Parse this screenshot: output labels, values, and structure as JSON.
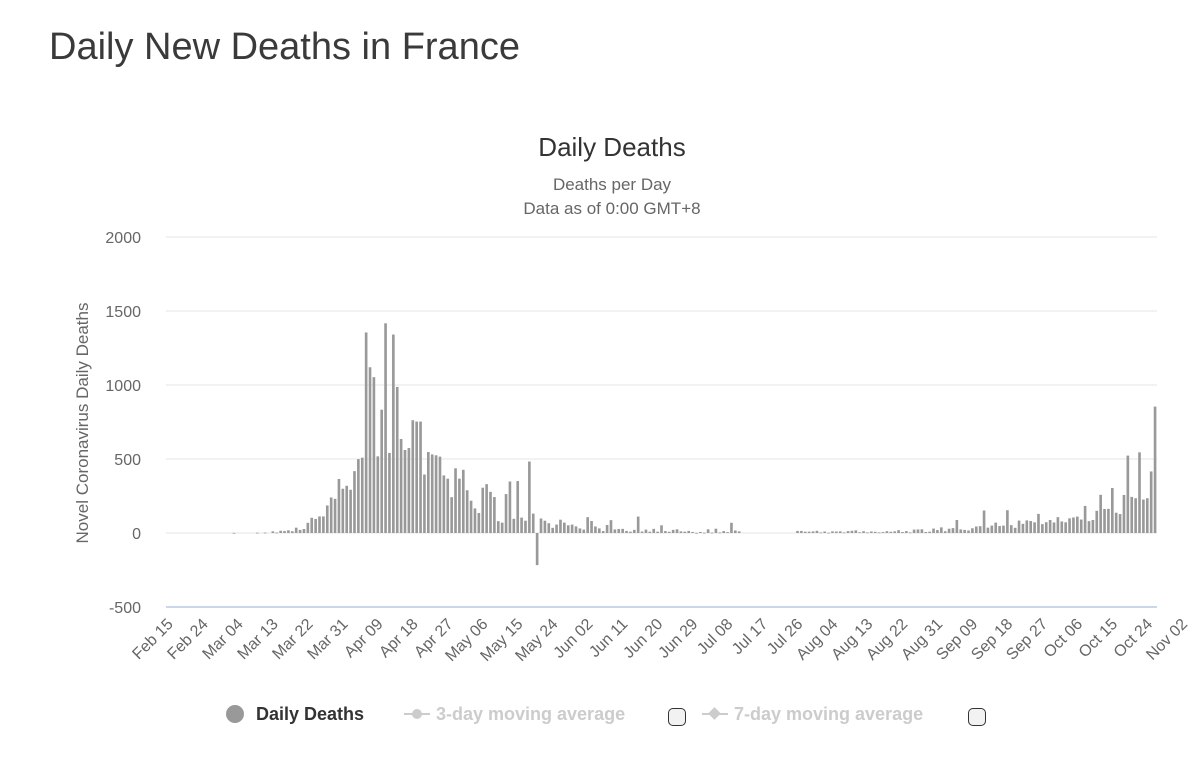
{
  "page": {
    "title": "Daily New Deaths in France"
  },
  "legend": {
    "items": [
      {
        "label": "Daily Deaths",
        "active": true
      },
      {
        "label": "3-day moving average",
        "active": false
      },
      {
        "label": "7-day moving average",
        "active": false
      }
    ]
  },
  "colors": {
    "bar": "#999999",
    "grid": "#e6e6e6",
    "zero_axis": "#ccd6eb",
    "text": "#666666"
  },
  "chart_data": {
    "type": "bar",
    "title": "Daily Deaths",
    "subtitle": [
      "Deaths per Day",
      "Data as of 0:00 GMT+8"
    ],
    "ylabel": "Novel Coronavirus Daily Deaths",
    "xlabel": "",
    "ylim": [
      -500,
      2000
    ],
    "yticks": [
      -500,
      0,
      500,
      1000,
      1500,
      2000
    ],
    "grid": true,
    "legend_position": "bottom",
    "x_start": "Feb 15",
    "x_tick_labels": [
      "Feb 15",
      "Feb 24",
      "Mar 04",
      "Mar 13",
      "Mar 22",
      "Mar 31",
      "Apr 09",
      "Apr 18",
      "Apr 27",
      "May 06",
      "May 15",
      "May 24",
      "Jun 02",
      "Jun 11",
      "Jun 20",
      "Jun 29",
      "Jul 08",
      "Jul 17",
      "Jul 26",
      "Aug 04",
      "Aug 13",
      "Aug 22",
      "Aug 31",
      "Sep 09",
      "Sep 18",
      "Sep 27",
      "Oct 06",
      "Oct 15",
      "Oct 24",
      "Nov 02"
    ],
    "series": [
      {
        "name": "Daily Deaths",
        "values": [
          0,
          0,
          0,
          0,
          0,
          0,
          0,
          0,
          0,
          0,
          0,
          0,
          0,
          0,
          0,
          0,
          0,
          1,
          0,
          0,
          0,
          0,
          0,
          2,
          0,
          3,
          0,
          11,
          3,
          15,
          13,
          18,
          12,
          36,
          21,
          27,
          69,
          103,
          95,
          112,
          112,
          186,
          240,
          231,
          365,
          299,
          319,
          292,
          418,
          499,
          509,
          1355,
          1120,
          1053,
          518,
          833,
          1417,
          541,
          1341,
          987,
          635,
          561,
          574,
          762,
          753,
          753,
          395,
          547,
          531,
          525,
          516,
          389,
          367,
          242,
          437,
          367,
          427,
          289,
          218,
          166,
          135,
          306,
          330,
          278,
          243,
          80,
          70,
          263,
          348,
          96,
          351,
          104,
          83,
          483,
          131,
          -217,
          98,
          83,
          66,
          35,
          57,
          90,
          70,
          52,
          57,
          45,
          31,
          23,
          107,
          81,
          44,
          31,
          13,
          54,
          87,
          24,
          27,
          28,
          14,
          9,
          21,
          111,
          10,
          23,
          9,
          28,
          9,
          52,
          13,
          8,
          21,
          25,
          11,
          9,
          14,
          7,
          1,
          7,
          2,
          25,
          3,
          29,
          4,
          13,
          6,
          69,
          17,
          11,
          0,
          0,
          0,
          0,
          0,
          0,
          0,
          0,
          0,
          0,
          0,
          0,
          0,
          0,
          14,
          14,
          9,
          9,
          11,
          15,
          4,
          10,
          2,
          11,
          10,
          11,
          4,
          13,
          15,
          18,
          5,
          12,
          4,
          10,
          8,
          4,
          6,
          12,
          8,
          11,
          19,
          7,
          13,
          4,
          23,
          24,
          25,
          7,
          9,
          30,
          20,
          38,
          12,
          29,
          33,
          88,
          24,
          21,
          17,
          32,
          44,
          46,
          152,
          36,
          50,
          70,
          47,
          50,
          154,
          53,
          35,
          84,
          62,
          85,
          81,
          72,
          129,
          60,
          73,
          88,
          71,
          107,
          78,
          72,
          99,
          105,
          111,
          91,
          183,
          80,
          88,
          150,
          258,
          162,
          163,
          304,
          137,
          128,
          257,
          523,
          244,
          235,
          545,
          226,
          235,
          416,
          854
        ]
      }
    ]
  }
}
